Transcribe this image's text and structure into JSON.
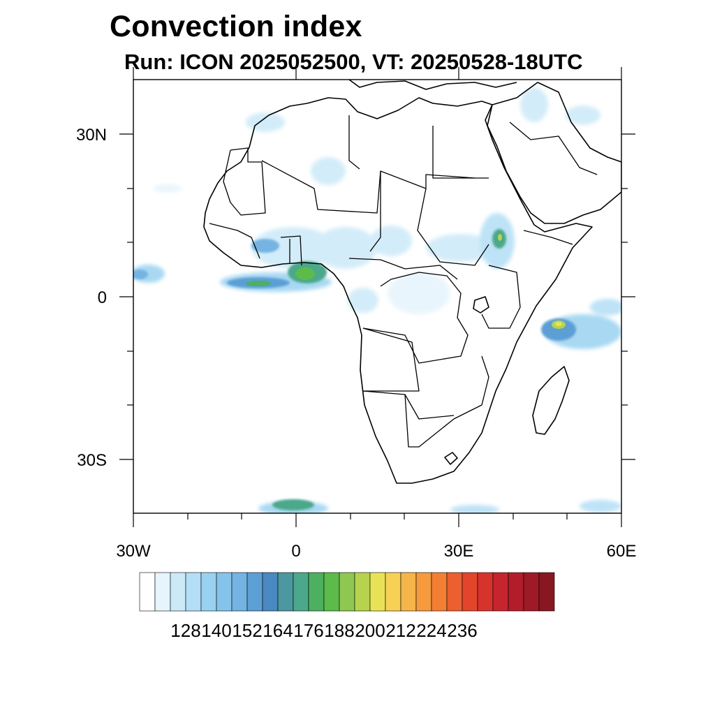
{
  "title": "Convection index",
  "subtitle": "Run: ICON 2025052500,  VT: 20250528-18UTC",
  "axes": {
    "lat_labels": [
      "30N",
      "0",
      "30S"
    ],
    "lon_labels": [
      "30W",
      "0",
      "30E",
      "60E"
    ]
  },
  "colorbar": {
    "labels": [
      "128",
      "140",
      "152",
      "164",
      "176",
      "188",
      "200",
      "212",
      "224",
      "236"
    ],
    "colors": [
      "#ffffff",
      "#e6f4fc",
      "#cce9f8",
      "#b3def5",
      "#99d2f0",
      "#86c3ea",
      "#74b3e2",
      "#5c9fd5",
      "#4a88c2",
      "#4c97a0",
      "#4ca88a",
      "#4cb060",
      "#5cbb4a",
      "#8ec850",
      "#b7d34e",
      "#e8e257",
      "#f7d155",
      "#f6b54a",
      "#f59a3e",
      "#f37f35",
      "#ec5f2e",
      "#e2452c",
      "#d6332d",
      "#c6252e",
      "#b21d2b",
      "#9d1a26",
      "#871822"
    ]
  },
  "colors": {
    "land_border": "#000000",
    "light_convection": "#b3def5",
    "moderate_convection": "#74b3e2",
    "strong_convection": "#4ca88a",
    "peak_convection": "#e8e257"
  }
}
